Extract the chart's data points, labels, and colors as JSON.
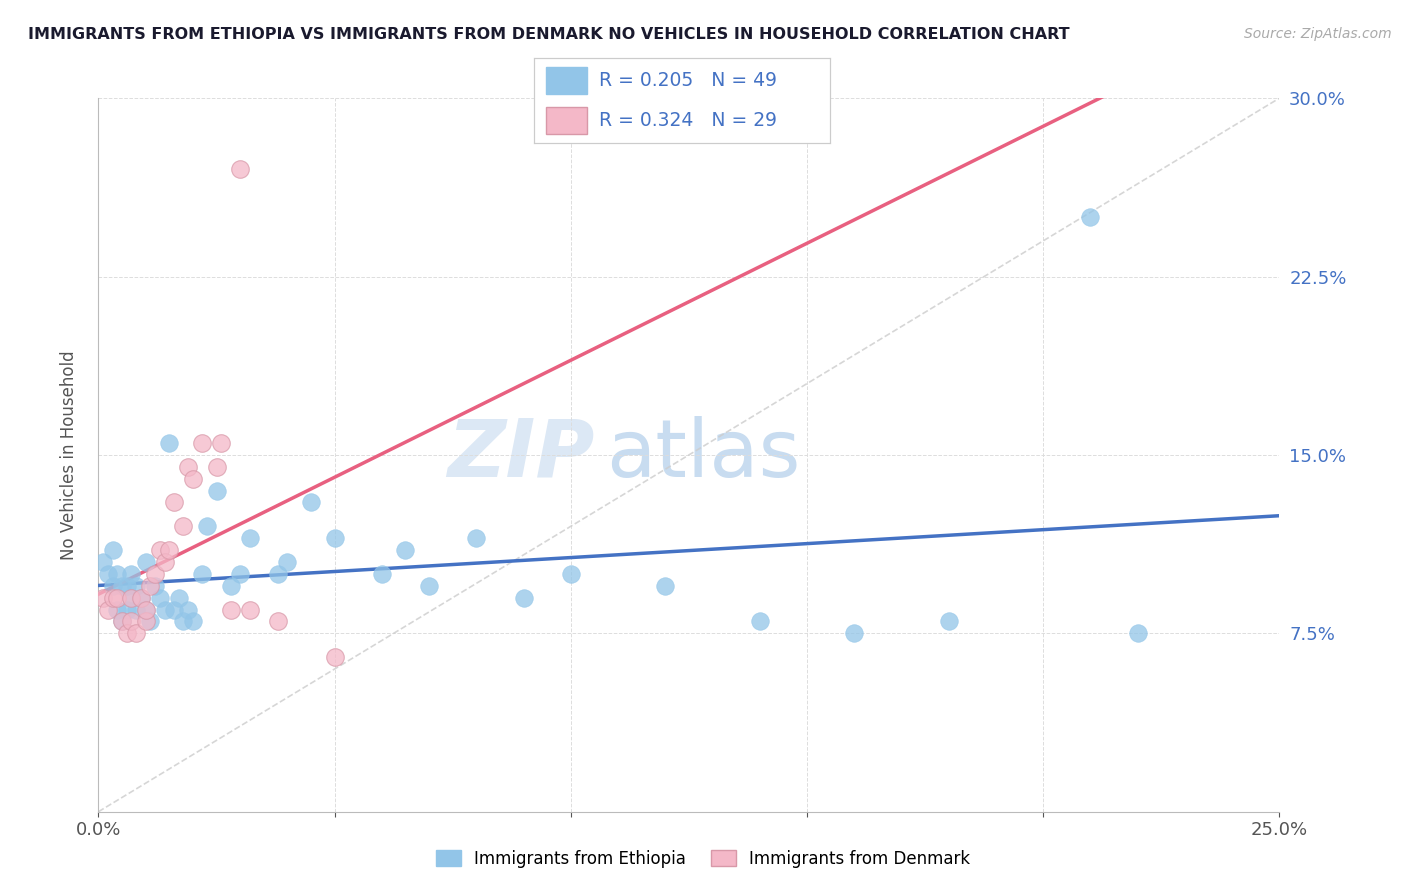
{
  "title": "IMMIGRANTS FROM ETHIOPIA VS IMMIGRANTS FROM DENMARK NO VEHICLES IN HOUSEHOLD CORRELATION CHART",
  "source": "Source: ZipAtlas.com",
  "ylabel": "No Vehicles in Household",
  "xlim": [
    0.0,
    0.25
  ],
  "ylim": [
    0.0,
    0.3
  ],
  "xticks": [
    0.0,
    0.05,
    0.1,
    0.15,
    0.2,
    0.25
  ],
  "yticks": [
    0.0,
    0.075,
    0.15,
    0.225,
    0.3
  ],
  "xticklabels": [
    "0.0%",
    "",
    "",
    "",
    "",
    "25.0%"
  ],
  "yticklabels_right": [
    "",
    "7.5%",
    "15.0%",
    "22.5%",
    "30.0%"
  ],
  "watermark_zip": "ZIP",
  "watermark_atlas": "atlas",
  "legend1_label": "Immigrants from Ethiopia",
  "legend2_label": "Immigrants from Denmark",
  "R1": 0.205,
  "N1": 49,
  "R2": 0.324,
  "N2": 29,
  "color_ethiopia": "#92C5E8",
  "color_denmark": "#F4B8C8",
  "color_trendline_ethiopia": "#4472C4",
  "color_trendline_denmark": "#E86080",
  "diagonal_color": "#CCCCCC",
  "ethiopia_x": [
    0.001,
    0.002,
    0.003,
    0.003,
    0.004,
    0.004,
    0.005,
    0.005,
    0.006,
    0.006,
    0.007,
    0.007,
    0.008,
    0.008,
    0.009,
    0.01,
    0.01,
    0.011,
    0.012,
    0.013,
    0.014,
    0.015,
    0.016,
    0.017,
    0.018,
    0.019,
    0.02,
    0.022,
    0.023,
    0.025,
    0.028,
    0.03,
    0.032,
    0.038,
    0.04,
    0.045,
    0.05,
    0.06,
    0.065,
    0.07,
    0.08,
    0.09,
    0.1,
    0.12,
    0.14,
    0.16,
    0.18,
    0.21,
    0.22
  ],
  "ethiopia_y": [
    0.105,
    0.1,
    0.11,
    0.095,
    0.085,
    0.1,
    0.095,
    0.08,
    0.095,
    0.085,
    0.09,
    0.1,
    0.095,
    0.085,
    0.09,
    0.085,
    0.105,
    0.08,
    0.095,
    0.09,
    0.085,
    0.155,
    0.085,
    0.09,
    0.08,
    0.085,
    0.08,
    0.1,
    0.12,
    0.135,
    0.095,
    0.1,
    0.115,
    0.1,
    0.105,
    0.13,
    0.115,
    0.1,
    0.11,
    0.095,
    0.115,
    0.09,
    0.1,
    0.095,
    0.08,
    0.075,
    0.08,
    0.25,
    0.075
  ],
  "denmark_x": [
    0.001,
    0.002,
    0.003,
    0.004,
    0.005,
    0.006,
    0.007,
    0.007,
    0.008,
    0.009,
    0.01,
    0.01,
    0.011,
    0.012,
    0.013,
    0.014,
    0.015,
    0.016,
    0.018,
    0.019,
    0.02,
    0.022,
    0.025,
    0.026,
    0.028,
    0.03,
    0.032,
    0.038,
    0.05
  ],
  "denmark_y": [
    0.09,
    0.085,
    0.09,
    0.09,
    0.08,
    0.075,
    0.08,
    0.09,
    0.075,
    0.09,
    0.08,
    0.085,
    0.095,
    0.1,
    0.11,
    0.105,
    0.11,
    0.13,
    0.12,
    0.145,
    0.14,
    0.155,
    0.145,
    0.155,
    0.085,
    0.27,
    0.085,
    0.08,
    0.065
  ]
}
